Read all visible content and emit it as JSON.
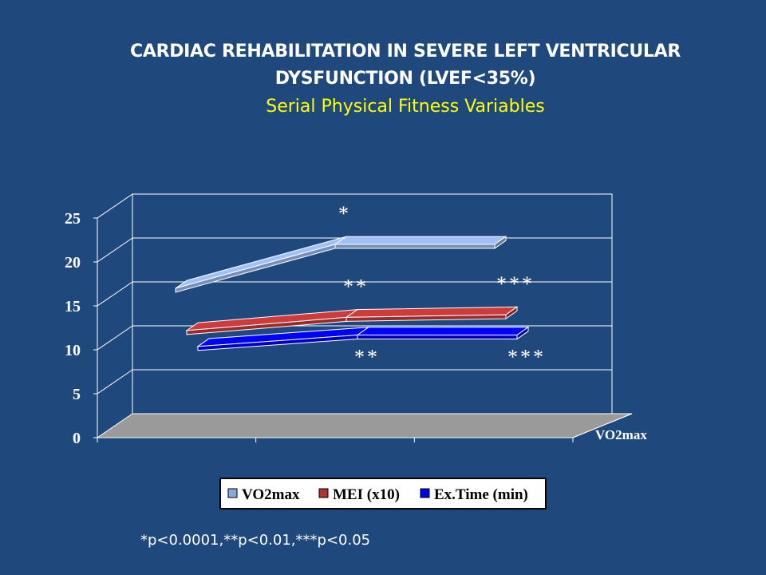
{
  "slide": {
    "title_line1": "CARDIAC REHABILITATION IN SEVERE LEFT VENTRICULAR",
    "title_line2": "DYSFUNCTION (LVEF<35%)",
    "subtitle": "Serial Physical Fitness Variables",
    "footnote": "*p<0.0001,**p<0.01,***p<0.05"
  },
  "chart_data": {
    "type": "line",
    "style": "3d",
    "x": [
      "",
      "",
      ""
    ],
    "ylim": [
      0,
      25
    ],
    "yticks": [
      "0",
      "5",
      "10",
      "15",
      "20",
      "25"
    ],
    "grid": true,
    "depth_axis_label": "VO2max",
    "legend_position": "bottom",
    "series": [
      {
        "name": "VO2max",
        "values": [
          17,
          22,
          22
        ],
        "color": "#8aa8d8",
        "annotations": [
          "",
          "*",
          ""
        ]
      },
      {
        "name": "MEI (x10)",
        "values": [
          12,
          13.5,
          13.8
        ],
        "color": "#b33333",
        "annotations": [
          "",
          "**",
          "***"
        ]
      },
      {
        "name": "Ex.Time (min)",
        "values": [
          10,
          11.3,
          11.3
        ],
        "color": "#0000e0",
        "annotations": [
          "",
          "**",
          "***"
        ]
      }
    ]
  }
}
